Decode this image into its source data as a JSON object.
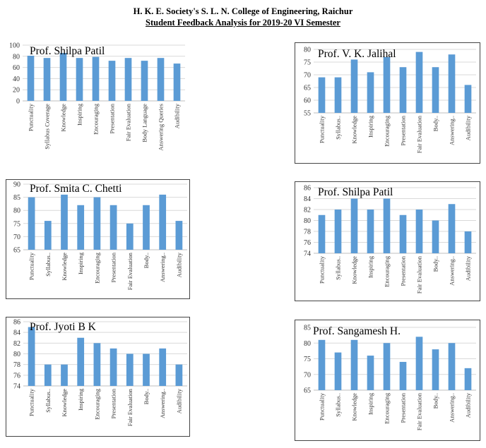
{
  "header": {
    "line1": "H. K. E. Society's S. L. N. College of Engineering, Raichur",
    "line2": "Student Feedback Analysis for 2019-20 VI Semester"
  },
  "colors": {
    "bar": "#5b9bd5",
    "grid": "#d9d9d9",
    "axis": "#bfbfbf"
  },
  "chart_data": [
    {
      "type": "bar",
      "title": "Prof. Shilpa Patil",
      "categories": [
        "Punctuality",
        "Syllabus Coverage",
        "Knowledge",
        "Inspiring",
        "Encouraging",
        "Presentation",
        "Fair Evaluation",
        "Body Language",
        "Answering Queries",
        "Audibility"
      ],
      "values": [
        81,
        77,
        86,
        77,
        79,
        72,
        77,
        72,
        77,
        67
      ],
      "ylim": [
        0,
        100
      ],
      "yticks": [
        0,
        20,
        40,
        60,
        80,
        100
      ],
      "grid": true
    },
    {
      "type": "bar",
      "title": "Prof. V. K. Jalihal",
      "categories": [
        "Punctuality",
        "Syllabus..",
        "Knowledge",
        "Inspiring",
        "Encouraging",
        "Presentation",
        "Fair Evaluation",
        "Body..",
        "Answering..",
        "Audibility"
      ],
      "values": [
        69,
        69,
        76,
        71,
        77,
        73,
        79,
        73,
        78,
        66
      ],
      "ylim": [
        55,
        80
      ],
      "yticks": [
        55,
        60,
        65,
        70,
        75,
        80
      ],
      "grid": true
    },
    {
      "type": "bar",
      "title": "Prof. Smita C. Chetti",
      "categories": [
        "Punctuality",
        "Syllabus..",
        "Knowledge",
        "Inspiring",
        "Encouraging",
        "Presentation",
        "Fair Evaluation",
        "Body..",
        "Answering..",
        "Audibility"
      ],
      "values": [
        85,
        76,
        86,
        82,
        85,
        82,
        75,
        82,
        86,
        76
      ],
      "ylim": [
        65,
        90
      ],
      "yticks": [
        65,
        70,
        75,
        80,
        85,
        90
      ],
      "grid": true
    },
    {
      "type": "bar",
      "title": "Prof. Shilpa Patil",
      "categories": [
        "Punctuality",
        "Syllabus..",
        "Knowledge",
        "Inspiring",
        "Encouraging",
        "Presentation",
        "Fair Evaluation",
        "Body..",
        "Answering..",
        "Audibility"
      ],
      "values": [
        81,
        82,
        84,
        82,
        84,
        81,
        82,
        80,
        83,
        78
      ],
      "ylim": [
        74,
        86
      ],
      "yticks": [
        74,
        76,
        78,
        80,
        82,
        84,
        86
      ],
      "grid": true
    },
    {
      "type": "bar",
      "title": "Prof. Jyoti B K",
      "categories": [
        "Punctuality",
        "Syllabus..",
        "Knowledge",
        "Inspiring",
        "Encouraging",
        "Presentation",
        "Fair Evaluation",
        "Body..",
        "Answering..",
        "Audibility"
      ],
      "values": [
        85,
        78,
        78,
        83,
        82,
        81,
        80,
        80,
        81,
        78
      ],
      "ylim": [
        74,
        86
      ],
      "yticks": [
        74,
        76,
        78,
        80,
        82,
        84,
        86
      ],
      "grid": true
    },
    {
      "type": "bar",
      "title": "Prof. Sangamesh H.",
      "categories": [
        "Punctuality",
        "Syllabus..",
        "Knowledge",
        "Inspiring",
        "Encouraging",
        "Presentation",
        "Fair Evaluation",
        "Body..",
        "Answering..",
        "Audibility"
      ],
      "values": [
        81,
        77,
        81,
        76,
        80,
        74,
        82,
        78,
        80,
        72
      ],
      "ylim": [
        65,
        85
      ],
      "yticks": [
        65,
        70,
        75,
        80,
        85
      ],
      "grid": true
    }
  ]
}
